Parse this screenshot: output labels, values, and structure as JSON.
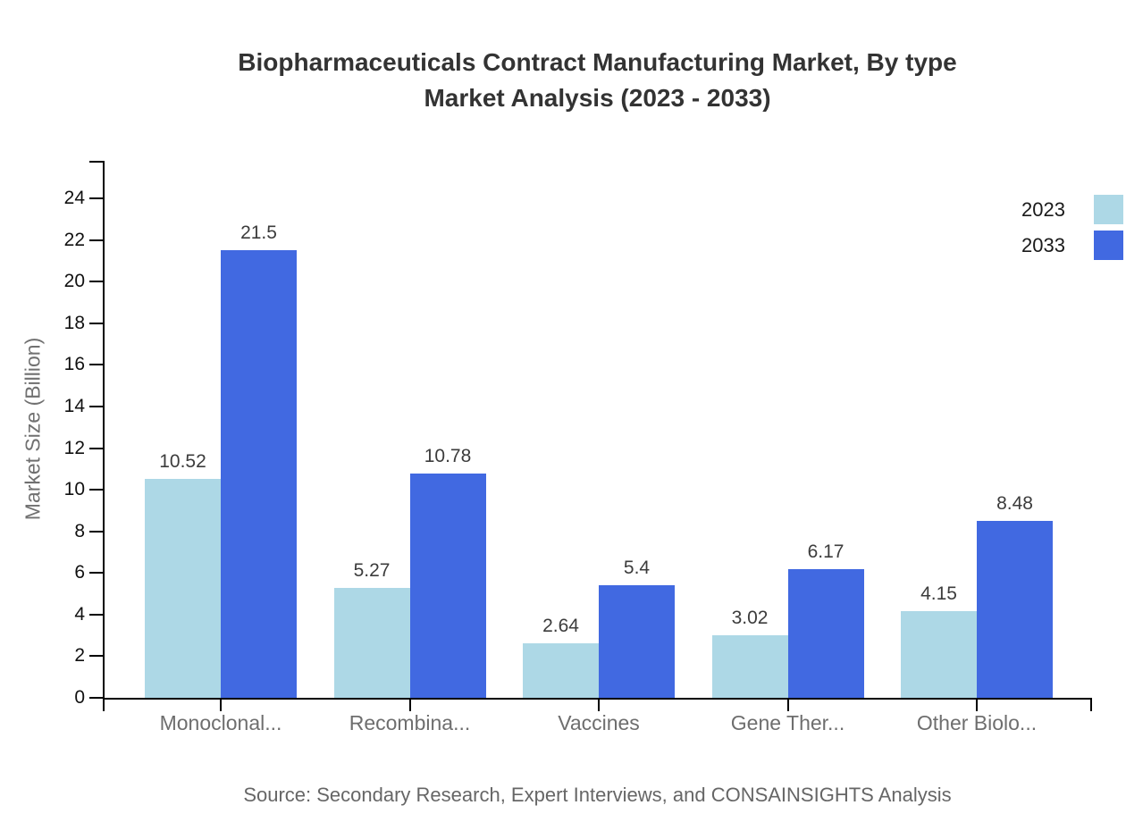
{
  "title": {
    "line1": "Biopharmaceuticals Contract Manufacturing Market, By type",
    "line2": "Market Analysis (2023 - 2033)"
  },
  "chart_data": {
    "type": "bar",
    "categories": [
      "Monoclonal...",
      "Recombina...",
      "Vaccines",
      "Gene Ther...",
      "Other Biolo..."
    ],
    "series": [
      {
        "name": "2023",
        "color": "#ADD8E6",
        "values": [
          10.52,
          5.27,
          2.64,
          3.02,
          4.15
        ]
      },
      {
        "name": "2033",
        "color": "#4169E1",
        "values": [
          21.5,
          10.78,
          5.4,
          6.17,
          8.48
        ]
      }
    ],
    "title": "Biopharmaceuticals Contract Manufacturing Market, By type Market Analysis (2023 - 2033)",
    "xlabel": "",
    "ylabel": "Market Size (Billion)",
    "ylim": [
      0,
      25.8
    ],
    "yticks": [
      0,
      2,
      4,
      6,
      8,
      10,
      12,
      14,
      16,
      18,
      20,
      22,
      24
    ],
    "grid": false,
    "legend_position": "top-right",
    "value_labels": true,
    "axis_color": "#000000"
  },
  "footer": {
    "source": "Source: Secondary Research, Expert Interviews, and CONSAINSIGHTS Analysis"
  }
}
